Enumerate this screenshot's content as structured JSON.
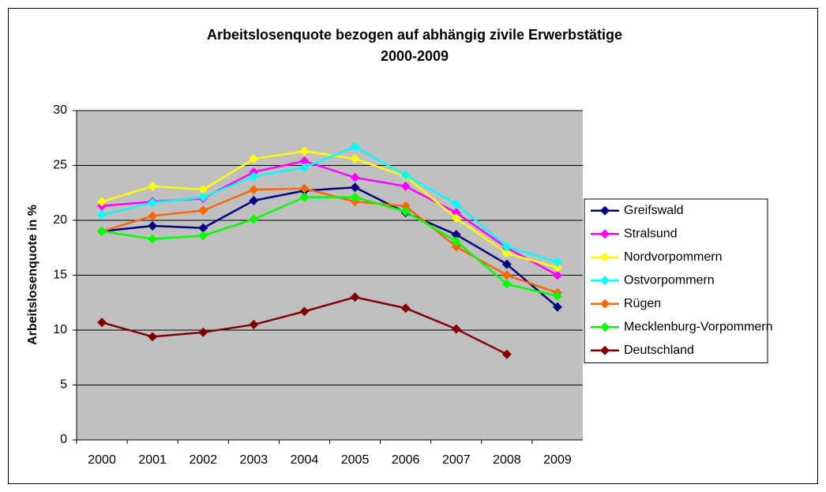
{
  "chart_data": {
    "type": "line",
    "title": [
      "Arbeitslosenquote bezogen auf abhängig zivile Erwerbstätige",
      "2000-2009"
    ],
    "y_label": "Arbeitslosenquote in %",
    "categories": [
      "2000",
      "2001",
      "2002",
      "2003",
      "2004",
      "2005",
      "2006",
      "2007",
      "2008",
      "2009"
    ],
    "ylim": [
      0,
      30
    ],
    "yticks": [
      0,
      5,
      10,
      15,
      20,
      25,
      30
    ],
    "grid": true,
    "legend": "right",
    "series": [
      {
        "name": "Greifswald",
        "color": "#000080",
        "values": [
          19.0,
          19.5,
          19.3,
          21.8,
          22.7,
          23.0,
          20.7,
          18.7,
          16.0,
          12.1
        ]
      },
      {
        "name": "Stralsund",
        "color": "#ff00ff",
        "values": [
          21.3,
          21.7,
          22.0,
          24.4,
          25.4,
          23.9,
          23.1,
          20.7,
          17.5,
          15.0
        ]
      },
      {
        "name": "Nordvorpommern",
        "color": "#ffff00",
        "values": [
          21.7,
          23.1,
          22.8,
          25.6,
          26.3,
          25.6,
          24.0,
          20.2,
          17.0,
          15.7
        ]
      },
      {
        "name": "Ostvorpommern",
        "color": "#00ffff",
        "values": [
          20.5,
          21.6,
          22.1,
          24.0,
          24.8,
          26.7,
          24.1,
          21.5,
          17.6,
          16.2
        ]
      },
      {
        "name": "Rügen",
        "color": "#ff6600",
        "values": [
          19.0,
          20.4,
          20.9,
          22.8,
          22.9,
          21.7,
          21.3,
          17.6,
          15.0,
          13.4
        ]
      },
      {
        "name": "Mecklenburg-Vorpommern",
        "color": "#00ff00",
        "values": [
          19.0,
          18.3,
          18.6,
          20.1,
          22.1,
          22.1,
          20.8,
          18.1,
          14.2,
          13.1
        ]
      },
      {
        "name": "Deutschland",
        "color": "#800000",
        "values": [
          10.7,
          9.4,
          9.8,
          10.5,
          11.7,
          13.0,
          12.0,
          10.1,
          7.8,
          null
        ]
      }
    ]
  }
}
